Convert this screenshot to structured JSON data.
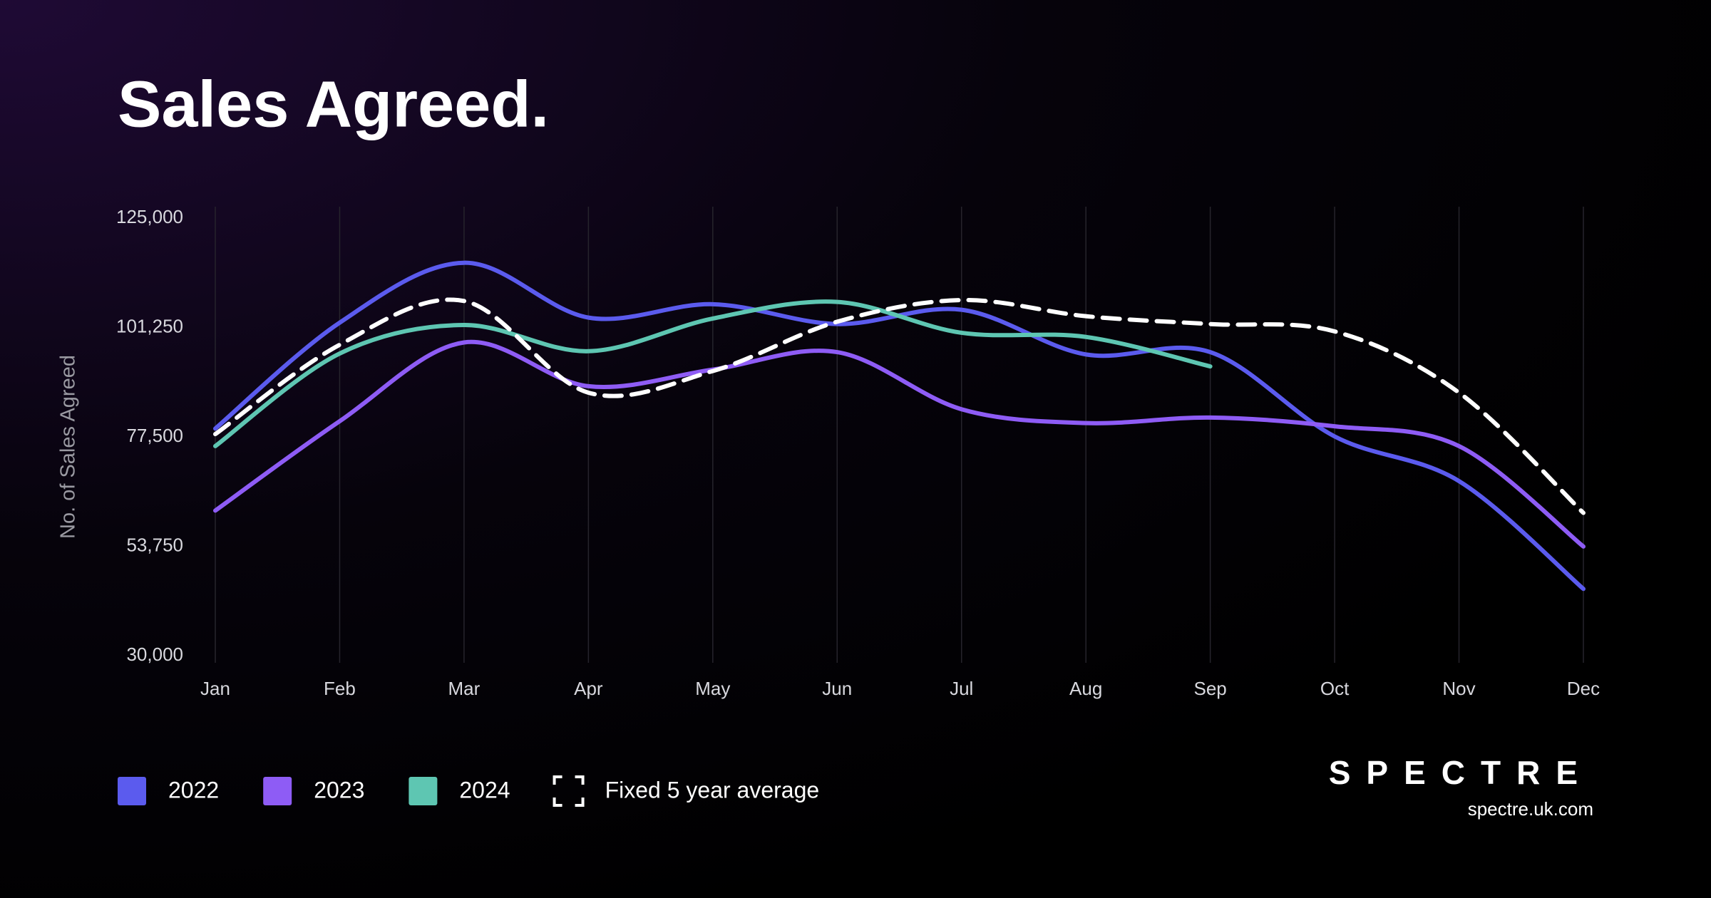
{
  "chart_data": {
    "type": "line",
    "title": "Sales Agreed.",
    "ylabel": "No. of Sales Agreed",
    "categories": [
      "Jan",
      "Feb",
      "Mar",
      "Apr",
      "May",
      "Jun",
      "Jul",
      "Aug",
      "Sep",
      "Oct",
      "Nov",
      "Dec"
    ],
    "series": [
      {
        "name": "2022",
        "color": "#5b5bee",
        "values": [
          79300,
          102300,
          115300,
          103400,
          106300,
          102000,
          105100,
          95400,
          95900,
          77600,
          67900,
          44500
        ]
      },
      {
        "name": "2023",
        "color": "#8e5cf5",
        "values": [
          61500,
          80900,
          98000,
          88500,
          92100,
          95900,
          83500,
          80500,
          81700,
          79800,
          75500,
          53700
        ]
      },
      {
        "name": "2024",
        "color": "#5ec6b2",
        "values": [
          75500,
          95600,
          101800,
          96100,
          103200,
          106800,
          100100,
          99200,
          92800,
          null,
          null,
          null
        ]
      },
      {
        "name": "Fixed 5 year average",
        "color": "#ffffff",
        "dashed": true,
        "values": [
          78100,
          97500,
          107000,
          87100,
          91800,
          102500,
          107200,
          103700,
          102000,
          100400,
          87100,
          61000
        ]
      }
    ],
    "ylim": [
      30000,
      125000
    ],
    "yticks": [
      {
        "value": 30000,
        "label": "30,000"
      },
      {
        "value": 53750,
        "label": "53,750"
      },
      {
        "value": 77500,
        "label": "77,500"
      },
      {
        "value": 101250,
        "label": "101,250"
      },
      {
        "value": 125000,
        "label": "125,000"
      }
    ],
    "grid": "x",
    "legend": "bottom-left"
  },
  "brand": {
    "logo": "SPECTRE",
    "url": "spectre.uk.com"
  }
}
